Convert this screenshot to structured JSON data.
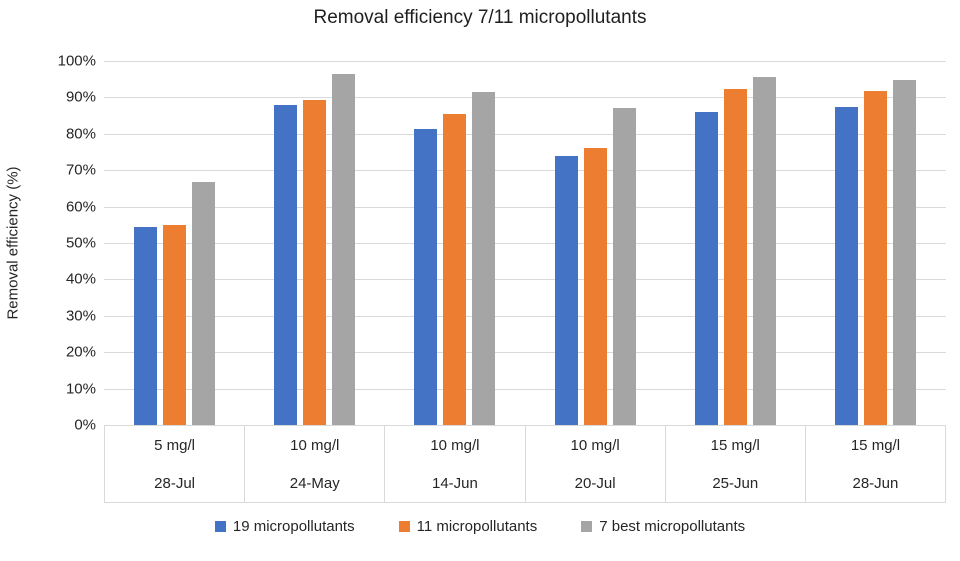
{
  "title": "Removal efficiency 7/11 micropollutants",
  "y_axis_title": "Removal efficiency (%)",
  "chart_data": {
    "type": "bar",
    "title": "Removal efficiency 7/11 micropollutants",
    "xlabel": "",
    "ylabel": "Removal efficiency (%)",
    "ylim": [
      0,
      100
    ],
    "ytick_step": 10,
    "ytick_suffix": "%",
    "grid": true,
    "legend_position": "bottom",
    "gridline_color": "#d9d9d9",
    "categories": [
      {
        "dose": "5 mg/l",
        "date": "28-Jul"
      },
      {
        "dose": "10 mg/l",
        "date": "24-May"
      },
      {
        "dose": "10 mg/l",
        "date": "14-Jun"
      },
      {
        "dose": "10 mg/l",
        "date": "20-Jul"
      },
      {
        "dose": "15 mg/l",
        "date": "25-Jun"
      },
      {
        "dose": "15 mg/l",
        "date": "28-Jun"
      }
    ],
    "series": [
      {
        "name": "19 micropollutants",
        "color": "#4472C4",
        "values": [
          54.5,
          87.8,
          81.4,
          74.0,
          86.0,
          87.3
        ]
      },
      {
        "name": "11 micropollutants",
        "color": "#ED7D31",
        "values": [
          55.0,
          89.2,
          85.4,
          76.0,
          92.2,
          91.8
        ]
      },
      {
        "name": "7 best micropollutants",
        "color": "#A5A5A5",
        "values": [
          66.7,
          96.3,
          91.4,
          87.2,
          95.7,
          94.9
        ]
      }
    ]
  }
}
